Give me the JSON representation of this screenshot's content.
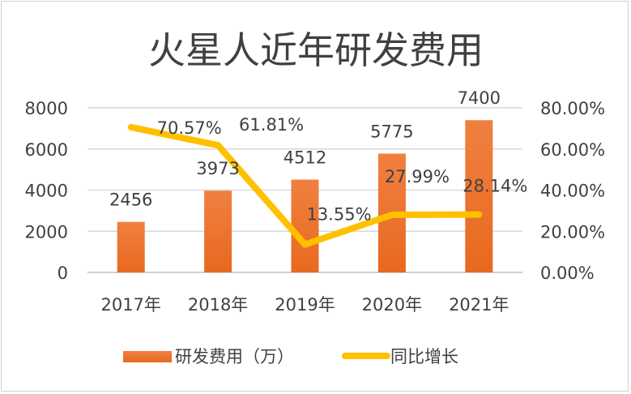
{
  "chart_data": {
    "type": "bar+line",
    "title": "火星人近年研发费用",
    "categories": [
      "2017年",
      "2018年",
      "2019年",
      "2020年",
      "2021年"
    ],
    "series": [
      {
        "name": "研发费用（万）",
        "type": "bar",
        "axis": "left",
        "color": "#ED7D31",
        "values": [
          2456,
          3973,
          4512,
          5775,
          7400
        ],
        "labels": [
          "2456",
          "3973",
          "4512",
          "5775",
          "7400"
        ]
      },
      {
        "name": "同比增长",
        "type": "line",
        "axis": "right",
        "color": "#FFC000",
        "values": [
          70.57,
          61.81,
          13.55,
          27.99,
          28.14
        ],
        "labels": [
          "70.57%",
          "61.81%",
          "13.55%",
          "27.99%",
          "28.14%"
        ]
      }
    ],
    "y_left": {
      "range": [
        0,
        8000
      ],
      "ticks": [
        "0",
        "2000",
        "4000",
        "6000",
        "8000"
      ]
    },
    "y_right": {
      "range": [
        0,
        80
      ],
      "ticks": [
        "0.00%",
        "20.00%",
        "40.00%",
        "60.00%",
        "80.00%"
      ]
    },
    "grid": true,
    "legend": "bottom"
  }
}
